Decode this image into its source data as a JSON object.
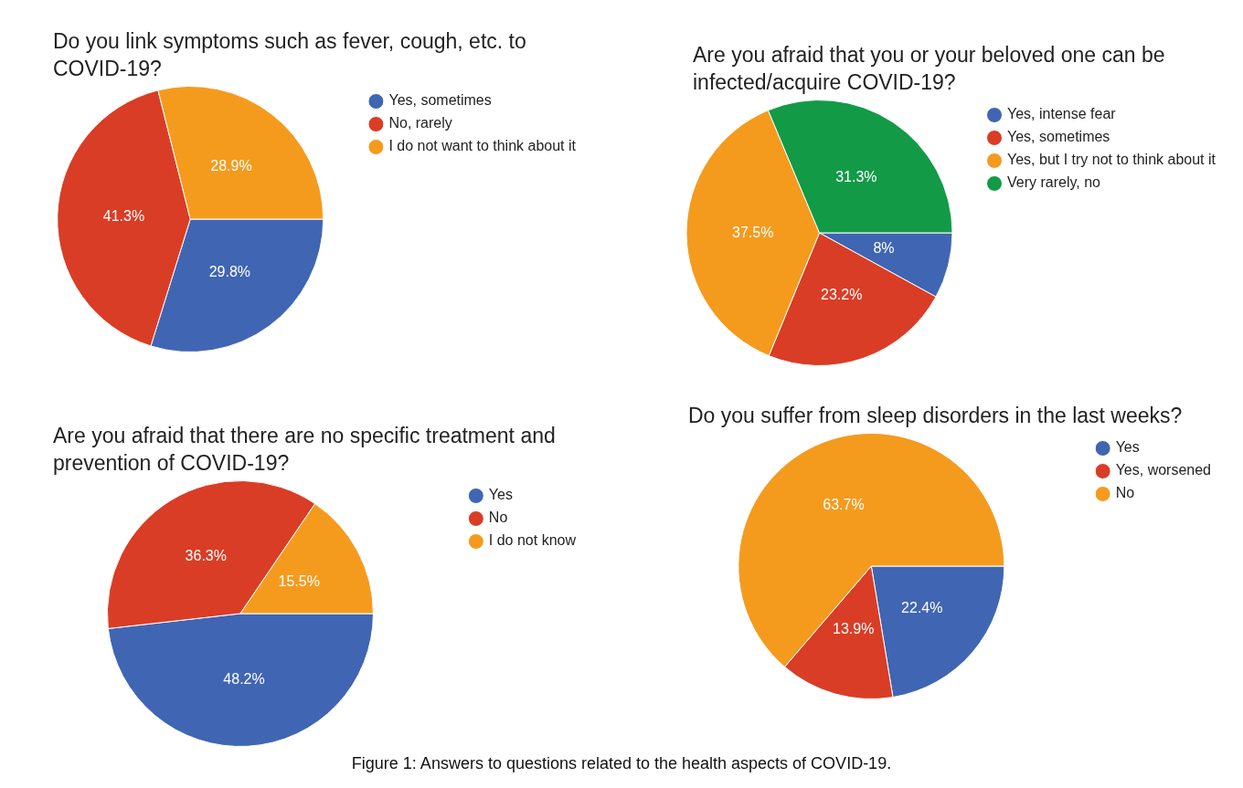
{
  "chart_data": [
    {
      "type": "pie",
      "title": "Do you link symptoms such as fever, cough, etc. to COVID-19?",
      "categories": [
        "Yes, sometimes",
        "No, rarely",
        "I do not want to think about it"
      ],
      "values": [
        29.8,
        41.3,
        28.9
      ],
      "value_labels": [
        "29.8%",
        "41.3%",
        "28.9%"
      ],
      "colors": [
        "#4065b2",
        "#d93d26",
        "#f49b1e"
      ],
      "legend": "right"
    },
    {
      "type": "pie",
      "title": "Are you afraid that you or your beloved one can be infected/acquire COVID-19?",
      "categories": [
        "Yes, intense fear",
        "Yes, sometimes",
        "Yes, but I try not to think about it",
        "Very rarely, no"
      ],
      "values": [
        8,
        23.2,
        37.5,
        31.3
      ],
      "value_labels": [
        "8%",
        "23.2%",
        "37.5%",
        "31.3%"
      ],
      "colors": [
        "#4065b2",
        "#d93d26",
        "#f49b1e",
        "#129a47"
      ],
      "legend": "right"
    },
    {
      "type": "pie",
      "title": "Are you afraid that there are no specific treatment and prevention of COVID-19?",
      "categories": [
        "Yes",
        "No",
        "I do not know"
      ],
      "values": [
        48.2,
        36.3,
        15.5
      ],
      "value_labels": [
        "48.2%",
        "36.3%",
        "15.5%"
      ],
      "colors": [
        "#4065b2",
        "#d93d26",
        "#f49b1e"
      ],
      "legend": "right"
    },
    {
      "type": "pie",
      "title": "Do you suffer from sleep disorders in the last weeks?",
      "categories": [
        "Yes",
        "Yes, worsened",
        "No"
      ],
      "values": [
        22.4,
        13.9,
        63.7
      ],
      "value_labels": [
        "22.4%",
        "13.9%",
        "63.7%"
      ],
      "colors": [
        "#4065b2",
        "#d93d26",
        "#f49b1e"
      ],
      "legend": "right",
      "annotations": [
        "Figure 1: Answers to questions related to the health aspects of COVID-19."
      ]
    }
  ]
}
